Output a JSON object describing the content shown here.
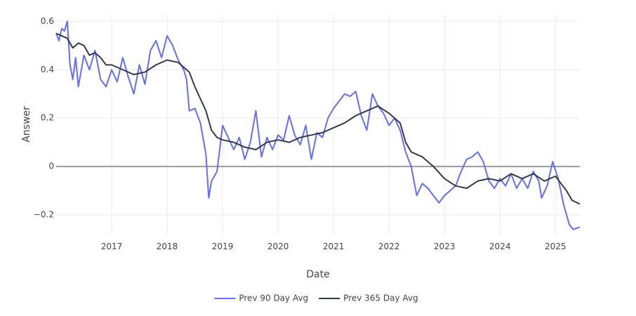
{
  "chart_data": {
    "type": "line",
    "xlabel": "Date",
    "ylabel": "Answer",
    "xlim": [
      2016.0,
      2025.44
    ],
    "xticks": [
      2017,
      2018,
      2019,
      2020,
      2021,
      2022,
      2023,
      2024,
      2025
    ],
    "ylim": [
      -0.28,
      0.63
    ],
    "yticks": [
      {
        "value": -0.2,
        "label": "−0.2"
      },
      0,
      0.2,
      0.4,
      0.6
    ],
    "grid": true,
    "zeroline": true,
    "legend": "bottom",
    "series": [
      {
        "name": "Prev 90 Day Avg",
        "color": "#636efa",
        "x": [
          2016.0,
          2016.05,
          2016.1,
          2016.15,
          2016.2,
          2016.25,
          2016.3,
          2016.35,
          2016.4,
          2016.5,
          2016.6,
          2016.7,
          2016.8,
          2016.9,
          2017.0,
          2017.1,
          2017.2,
          2017.3,
          2017.4,
          2017.5,
          2017.6,
          2017.7,
          2017.8,
          2017.9,
          2018.0,
          2018.1,
          2018.2,
          2018.3,
          2018.35,
          2018.4,
          2018.5,
          2018.6,
          2018.7,
          2018.75,
          2018.8,
          2018.9,
          2019.0,
          2019.1,
          2019.2,
          2019.3,
          2019.4,
          2019.5,
          2019.6,
          2019.7,
          2019.8,
          2019.9,
          2020.0,
          2020.1,
          2020.2,
          2020.3,
          2020.4,
          2020.5,
          2020.6,
          2020.7,
          2020.8,
          2020.9,
          2021.0,
          2021.1,
          2021.2,
          2021.3,
          2021.4,
          2021.5,
          2021.6,
          2021.7,
          2021.8,
          2021.9,
          2022.0,
          2022.1,
          2022.2,
          2022.3,
          2022.4,
          2022.5,
          2022.6,
          2022.7,
          2022.8,
          2022.9,
          2023.0,
          2023.1,
          2023.2,
          2023.3,
          2023.4,
          2023.5,
          2023.6,
          2023.7,
          2023.8,
          2023.9,
          2024.0,
          2024.1,
          2024.2,
          2024.3,
          2024.4,
          2024.5,
          2024.6,
          2024.7,
          2024.75,
          2024.85,
          2024.95,
          2025.05,
          2025.15,
          2025.25,
          2025.32,
          2025.44
        ],
        "values": [
          0.55,
          0.52,
          0.57,
          0.56,
          0.6,
          0.42,
          0.36,
          0.45,
          0.33,
          0.46,
          0.4,
          0.48,
          0.36,
          0.33,
          0.4,
          0.35,
          0.45,
          0.37,
          0.3,
          0.42,
          0.34,
          0.48,
          0.52,
          0.45,
          0.54,
          0.5,
          0.44,
          0.4,
          0.36,
          0.23,
          0.24,
          0.18,
          0.05,
          -0.13,
          -0.06,
          -0.02,
          0.17,
          0.12,
          0.07,
          0.12,
          0.03,
          0.1,
          0.23,
          0.04,
          0.12,
          0.07,
          0.13,
          0.11,
          0.21,
          0.13,
          0.09,
          0.17,
          0.03,
          0.14,
          0.12,
          0.2,
          0.24,
          0.27,
          0.3,
          0.29,
          0.31,
          0.21,
          0.15,
          0.3,
          0.25,
          0.22,
          0.17,
          0.2,
          0.15,
          0.06,
          0.0,
          -0.12,
          -0.07,
          -0.09,
          -0.12,
          -0.15,
          -0.12,
          -0.1,
          -0.08,
          -0.02,
          0.03,
          0.04,
          0.06,
          0.02,
          -0.06,
          -0.09,
          -0.05,
          -0.08,
          -0.03,
          -0.09,
          -0.05,
          -0.09,
          -0.02,
          -0.06,
          -0.13,
          -0.08,
          0.02,
          -0.05,
          -0.16,
          -0.24,
          -0.26,
          -0.25
        ]
      },
      {
        "name": "Prev 365 Day Avg",
        "color": "#333a48",
        "x": [
          2016.0,
          2016.2,
          2016.3,
          2016.4,
          2016.5,
          2016.6,
          2016.7,
          2016.8,
          2016.9,
          2017.0,
          2017.2,
          2017.4,
          2017.6,
          2017.8,
          2018.0,
          2018.2,
          2018.4,
          2018.5,
          2018.6,
          2018.7,
          2018.8,
          2018.9,
          2019.0,
          2019.2,
          2019.4,
          2019.6,
          2019.8,
          2020.0,
          2020.2,
          2020.4,
          2020.6,
          2020.8,
          2021.0,
          2021.2,
          2021.4,
          2021.6,
          2021.8,
          2022.0,
          2022.2,
          2022.3,
          2022.4,
          2022.6,
          2022.8,
          2023.0,
          2023.2,
          2023.4,
          2023.6,
          2023.8,
          2024.0,
          2024.2,
          2024.4,
          2024.6,
          2024.8,
          2025.0,
          2025.2,
          2025.3,
          2025.44
        ],
        "values": [
          0.55,
          0.53,
          0.49,
          0.51,
          0.5,
          0.46,
          0.47,
          0.45,
          0.42,
          0.42,
          0.4,
          0.38,
          0.39,
          0.42,
          0.44,
          0.43,
          0.39,
          0.33,
          0.28,
          0.23,
          0.15,
          0.12,
          0.11,
          0.1,
          0.08,
          0.07,
          0.1,
          0.11,
          0.1,
          0.12,
          0.13,
          0.14,
          0.16,
          0.18,
          0.21,
          0.23,
          0.25,
          0.22,
          0.18,
          0.1,
          0.06,
          0.04,
          0.0,
          -0.05,
          -0.08,
          -0.09,
          -0.06,
          -0.05,
          -0.06,
          -0.03,
          -0.05,
          -0.03,
          -0.06,
          -0.04,
          -0.1,
          -0.14,
          -0.155
        ]
      }
    ]
  }
}
